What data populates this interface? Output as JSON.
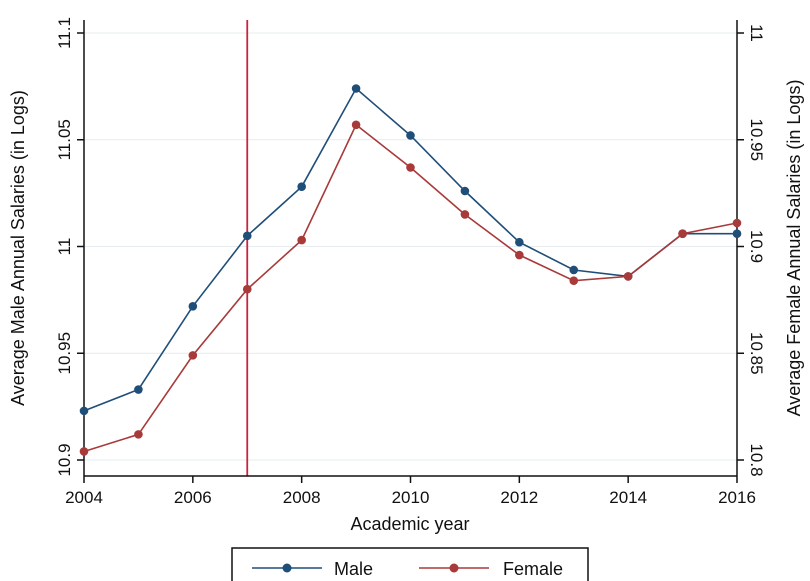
{
  "chart_data": {
    "type": "line",
    "title": "",
    "xlabel": "Academic year",
    "ylabel_left": "Average Male Annual Salaries (in Logs)",
    "ylabel_right": "Average Female Annual Salaries (in Logs)",
    "x": [
      2004,
      2005,
      2006,
      2007,
      2008,
      2009,
      2010,
      2011,
      2012,
      2013,
      2014,
      2015,
      2016
    ],
    "xticks": [
      2004,
      2006,
      2008,
      2010,
      2012,
      2014,
      2016
    ],
    "xlim": [
      2004,
      2016
    ],
    "ylim_left": [
      10.9,
      11.1
    ],
    "ylim_right": [
      10.8,
      11.0
    ],
    "yticks_left": [
      "10.9",
      "10.95",
      "11",
      "11.05",
      "11.1"
    ],
    "yticks_right": [
      "10.8",
      "10.85",
      "10.9",
      "10.95",
      "11"
    ],
    "grid": true,
    "vertical_line": {
      "x": 2007,
      "color": "#c8233f"
    },
    "series": [
      {
        "name": "Male",
        "axis": "left",
        "color": "#1f4e79",
        "values": [
          10.923,
          10.933,
          10.972,
          11.005,
          11.028,
          11.074,
          11.052,
          11.026,
          11.002,
          10.989,
          10.986,
          11.006,
          11.006
        ]
      },
      {
        "name": "Female",
        "axis": "right",
        "color": "#a83a3a",
        "values": [
          10.804,
          10.812,
          10.849,
          10.88,
          10.903,
          10.957,
          10.937,
          10.915,
          10.896,
          10.884,
          10.886,
          10.906,
          10.911
        ]
      }
    ],
    "legend": {
      "position": "bottom-center",
      "items": [
        "Male",
        "Female"
      ]
    }
  }
}
